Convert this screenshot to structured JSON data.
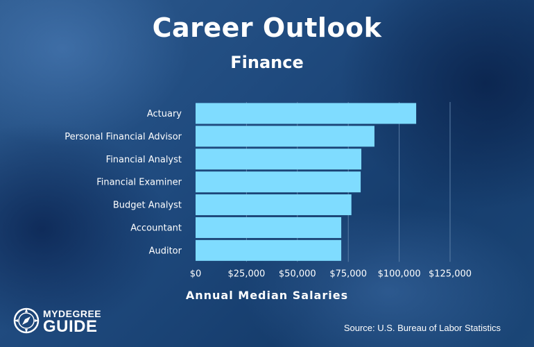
{
  "header": {
    "title": "Career Outlook",
    "subtitle": "Finance"
  },
  "chart_data": {
    "type": "bar",
    "orientation": "horizontal",
    "categories": [
      "Actuary",
      "Personal Financial Advisor",
      "Financial Analyst",
      "Financial Examiner",
      "Budget Analyst",
      "Accountant",
      "Auditor"
    ],
    "values": [
      108350,
      87850,
      81410,
      81090,
      76540,
      71550,
      71550
    ],
    "xlabel": "Annual Median Salaries",
    "ylabel": "",
    "xlim": [
      0,
      125000
    ],
    "xticks": [
      0,
      25000,
      50000,
      75000,
      100000,
      125000
    ],
    "xtick_labels": [
      "$0",
      "$25,000",
      "$50,000",
      "$75,000",
      "$100,000",
      "$125,000"
    ],
    "grid": "vertical",
    "colors": {
      "bar": "#7fdcff",
      "grid": "#5a7ea6",
      "text": "#ffffff"
    }
  },
  "footer": {
    "source": "Source: U.S. Bureau of Labor Statistics",
    "logo_text_top": "MYDEGREE",
    "logo_text_bottom": "GUIDE"
  }
}
